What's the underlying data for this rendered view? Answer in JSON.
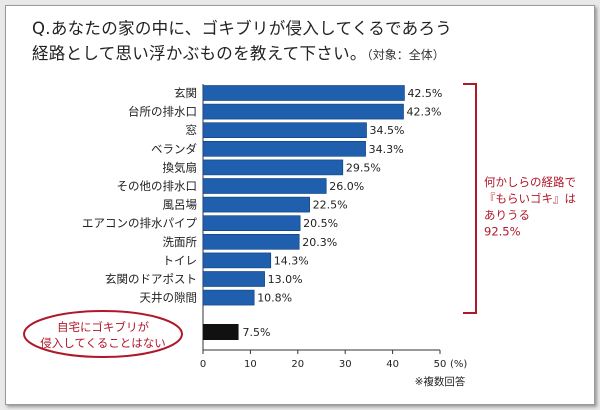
{
  "title": {
    "line1": "Q.あなたの家の中に、ゴキブリが侵入してくるであろう",
    "line2": "経路として思い浮かぶものを教えて下さい。",
    "note": "（対象：全体）"
  },
  "bracket_label": [
    "何かしらの経路で",
    "『もらいゴキ』は",
    "ありうる",
    "92.5%"
  ],
  "no_entry_label": [
    "自宅にゴキブリが",
    "侵入してくることはない"
  ],
  "footnote": "※複数回答",
  "colors": {
    "bar": "#1f5fae",
    "bar_edge": "#0d3d7a",
    "no_entry_bar": "#111111",
    "highlight": "#b0182a"
  },
  "chart_data": {
    "type": "bar",
    "orientation": "horizontal",
    "categories": [
      "玄関",
      "台所の排水口",
      "窓",
      "ベランダ",
      "換気扇",
      "その他の排水口",
      "風呂場",
      "エアコンの排水パイプ",
      "洗面所",
      "トイレ",
      "玄関のドアポスト",
      "天井の隙間"
    ],
    "values": [
      42.5,
      42.3,
      34.5,
      34.3,
      29.5,
      26.0,
      22.5,
      20.5,
      20.3,
      14.3,
      13.0,
      10.8
    ],
    "value_labels": [
      "42.5%",
      "42.3%",
      "34.5%",
      "34.3%",
      "29.5%",
      "26.0%",
      "22.5%",
      "20.5%",
      "20.3%",
      "14.3%",
      "13.0%",
      "10.8%"
    ],
    "extra_bar": {
      "value": 7.5,
      "label": "7.5%"
    },
    "xlim": [
      0,
      50
    ],
    "xticks": [
      0,
      10,
      20,
      30,
      40,
      50
    ],
    "x_unit": "(%)"
  }
}
